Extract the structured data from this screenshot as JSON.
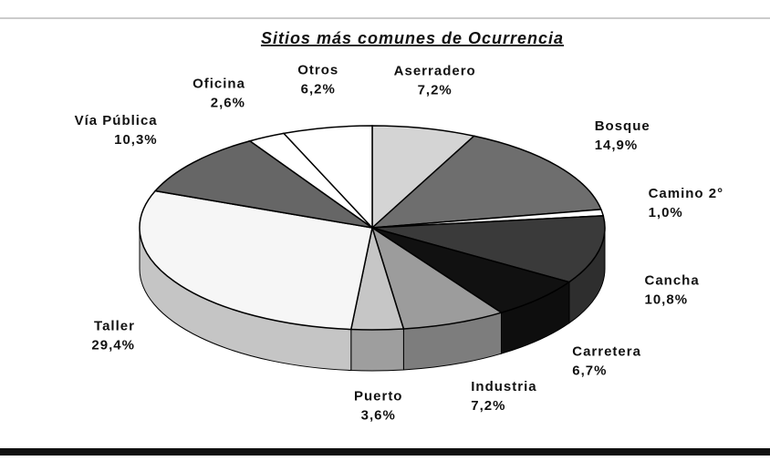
{
  "chart_data": {
    "type": "pie",
    "title": "Sitios más comunes de Ocurrencia",
    "categories": [
      "Aserradero",
      "Bosque",
      "Camino 2°",
      "Cancha",
      "Carretera",
      "Industria",
      "Puerto",
      "Taller",
      "Vía Pública",
      "Oficina",
      "Otros"
    ],
    "values": [
      7.2,
      14.9,
      1.0,
      10.8,
      6.7,
      7.2,
      3.6,
      29.4,
      10.3,
      2.6,
      6.2
    ],
    "value_labels": [
      "7,2%",
      "14,9%",
      "1,0%",
      "10,8%",
      "6,7%",
      "7,2%",
      "3,6%",
      "29,4%",
      "10,3%",
      "2,6%",
      "6,2%"
    ],
    "colors": [
      "#d4d4d4",
      "#6e6e6e",
      "#ffffff",
      "#3a3a3a",
      "#111111",
      "#9c9c9c",
      "#c6c6c6",
      "#f6f6f6",
      "#666666",
      "#ffffff",
      "#ffffff"
    ]
  }
}
